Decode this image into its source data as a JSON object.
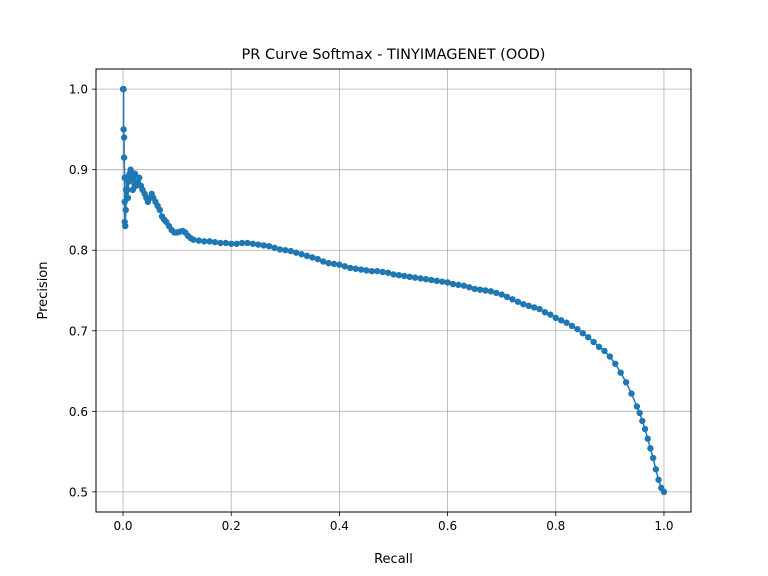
{
  "chart_data": {
    "type": "line",
    "title": "PR Curve Softmax - TINYIMAGENET (OOD)",
    "xlabel": "Recall",
    "ylabel": "Precision",
    "xlim": [
      -0.05,
      1.05
    ],
    "ylim": [
      0.475,
      1.025
    ],
    "xticks": [
      0.0,
      0.2,
      0.4,
      0.6,
      0.8,
      1.0
    ],
    "xtick_labels": [
      "0.0",
      "0.2",
      "0.4",
      "0.6",
      "0.8",
      "1.0"
    ],
    "yticks": [
      0.5,
      0.6,
      0.7,
      0.8,
      0.9,
      1.0
    ],
    "ytick_labels": [
      "0.5",
      "0.6",
      "0.7",
      "0.8",
      "0.9",
      "1.0"
    ],
    "grid": true,
    "legend": "none",
    "color": "#1f77b4",
    "marker": "circle",
    "series": [
      {
        "points": [
          [
            0.0,
            1.0
          ],
          [
            0.001,
            1.0
          ],
          [
            0.001,
            0.95
          ],
          [
            0.002,
            0.94
          ],
          [
            0.002,
            0.915
          ],
          [
            0.003,
            0.89
          ],
          [
            0.003,
            0.86
          ],
          [
            0.003,
            0.835
          ],
          [
            0.004,
            0.83
          ],
          [
            0.005,
            0.85
          ],
          [
            0.006,
            0.875
          ],
          [
            0.007,
            0.89
          ],
          [
            0.008,
            0.875
          ],
          [
            0.009,
            0.865
          ],
          [
            0.01,
            0.885
          ],
          [
            0.012,
            0.895
          ],
          [
            0.014,
            0.9
          ],
          [
            0.016,
            0.89
          ],
          [
            0.018,
            0.875
          ],
          [
            0.02,
            0.885
          ],
          [
            0.022,
            0.895
          ],
          [
            0.024,
            0.88
          ],
          [
            0.027,
            0.885
          ],
          [
            0.03,
            0.89
          ],
          [
            0.033,
            0.88
          ],
          [
            0.036,
            0.875
          ],
          [
            0.04,
            0.87
          ],
          [
            0.043,
            0.865
          ],
          [
            0.046,
            0.86
          ],
          [
            0.05,
            0.865
          ],
          [
            0.053,
            0.87
          ],
          [
            0.056,
            0.865
          ],
          [
            0.06,
            0.86
          ],
          [
            0.064,
            0.855
          ],
          [
            0.068,
            0.85
          ],
          [
            0.072,
            0.842
          ],
          [
            0.076,
            0.838
          ],
          [
            0.08,
            0.835
          ],
          [
            0.085,
            0.83
          ],
          [
            0.09,
            0.825
          ],
          [
            0.095,
            0.822
          ],
          [
            0.1,
            0.822
          ],
          [
            0.105,
            0.823
          ],
          [
            0.11,
            0.824
          ],
          [
            0.115,
            0.822
          ],
          [
            0.12,
            0.818
          ],
          [
            0.125,
            0.815
          ],
          [
            0.13,
            0.813
          ],
          [
            0.14,
            0.812
          ],
          [
            0.15,
            0.811
          ],
          [
            0.16,
            0.811
          ],
          [
            0.17,
            0.81
          ],
          [
            0.18,
            0.809
          ],
          [
            0.19,
            0.809
          ],
          [
            0.2,
            0.808
          ],
          [
            0.21,
            0.808
          ],
          [
            0.22,
            0.809
          ],
          [
            0.23,
            0.809
          ],
          [
            0.24,
            0.808
          ],
          [
            0.25,
            0.807
          ],
          [
            0.26,
            0.806
          ],
          [
            0.27,
            0.805
          ],
          [
            0.28,
            0.803
          ],
          [
            0.29,
            0.801
          ],
          [
            0.3,
            0.8
          ],
          [
            0.31,
            0.799
          ],
          [
            0.32,
            0.797
          ],
          [
            0.33,
            0.795
          ],
          [
            0.34,
            0.793
          ],
          [
            0.35,
            0.791
          ],
          [
            0.36,
            0.789
          ],
          [
            0.37,
            0.786
          ],
          [
            0.38,
            0.784
          ],
          [
            0.39,
            0.783
          ],
          [
            0.4,
            0.782
          ],
          [
            0.41,
            0.78
          ],
          [
            0.42,
            0.778
          ],
          [
            0.43,
            0.777
          ],
          [
            0.44,
            0.776
          ],
          [
            0.45,
            0.775
          ],
          [
            0.46,
            0.774
          ],
          [
            0.47,
            0.774
          ],
          [
            0.48,
            0.773
          ],
          [
            0.49,
            0.772
          ],
          [
            0.5,
            0.77
          ],
          [
            0.51,
            0.769
          ],
          [
            0.52,
            0.768
          ],
          [
            0.53,
            0.767
          ],
          [
            0.54,
            0.766
          ],
          [
            0.55,
            0.765
          ],
          [
            0.56,
            0.764
          ],
          [
            0.57,
            0.763
          ],
          [
            0.58,
            0.762
          ],
          [
            0.59,
            0.761
          ],
          [
            0.6,
            0.76
          ],
          [
            0.61,
            0.758
          ],
          [
            0.62,
            0.757
          ],
          [
            0.63,
            0.756
          ],
          [
            0.64,
            0.754
          ],
          [
            0.65,
            0.752
          ],
          [
            0.66,
            0.751
          ],
          [
            0.67,
            0.75
          ],
          [
            0.68,
            0.749
          ],
          [
            0.69,
            0.747
          ],
          [
            0.7,
            0.745
          ],
          [
            0.71,
            0.742
          ],
          [
            0.72,
            0.739
          ],
          [
            0.73,
            0.736
          ],
          [
            0.74,
            0.733
          ],
          [
            0.75,
            0.731
          ],
          [
            0.76,
            0.729
          ],
          [
            0.77,
            0.727
          ],
          [
            0.78,
            0.723
          ],
          [
            0.79,
            0.72
          ],
          [
            0.8,
            0.716
          ],
          [
            0.81,
            0.713
          ],
          [
            0.82,
            0.71
          ],
          [
            0.83,
            0.706
          ],
          [
            0.84,
            0.702
          ],
          [
            0.85,
            0.697
          ],
          [
            0.86,
            0.692
          ],
          [
            0.87,
            0.686
          ],
          [
            0.88,
            0.68
          ],
          [
            0.89,
            0.675
          ],
          [
            0.9,
            0.668
          ],
          [
            0.91,
            0.659
          ],
          [
            0.92,
            0.648
          ],
          [
            0.93,
            0.636
          ],
          [
            0.94,
            0.622
          ],
          [
            0.95,
            0.606
          ],
          [
            0.955,
            0.598
          ],
          [
            0.96,
            0.588
          ],
          [
            0.965,
            0.578
          ],
          [
            0.97,
            0.566
          ],
          [
            0.975,
            0.554
          ],
          [
            0.98,
            0.542
          ],
          [
            0.985,
            0.528
          ],
          [
            0.99,
            0.515
          ],
          [
            0.995,
            0.505
          ],
          [
            1.0,
            0.5
          ]
        ]
      }
    ]
  }
}
